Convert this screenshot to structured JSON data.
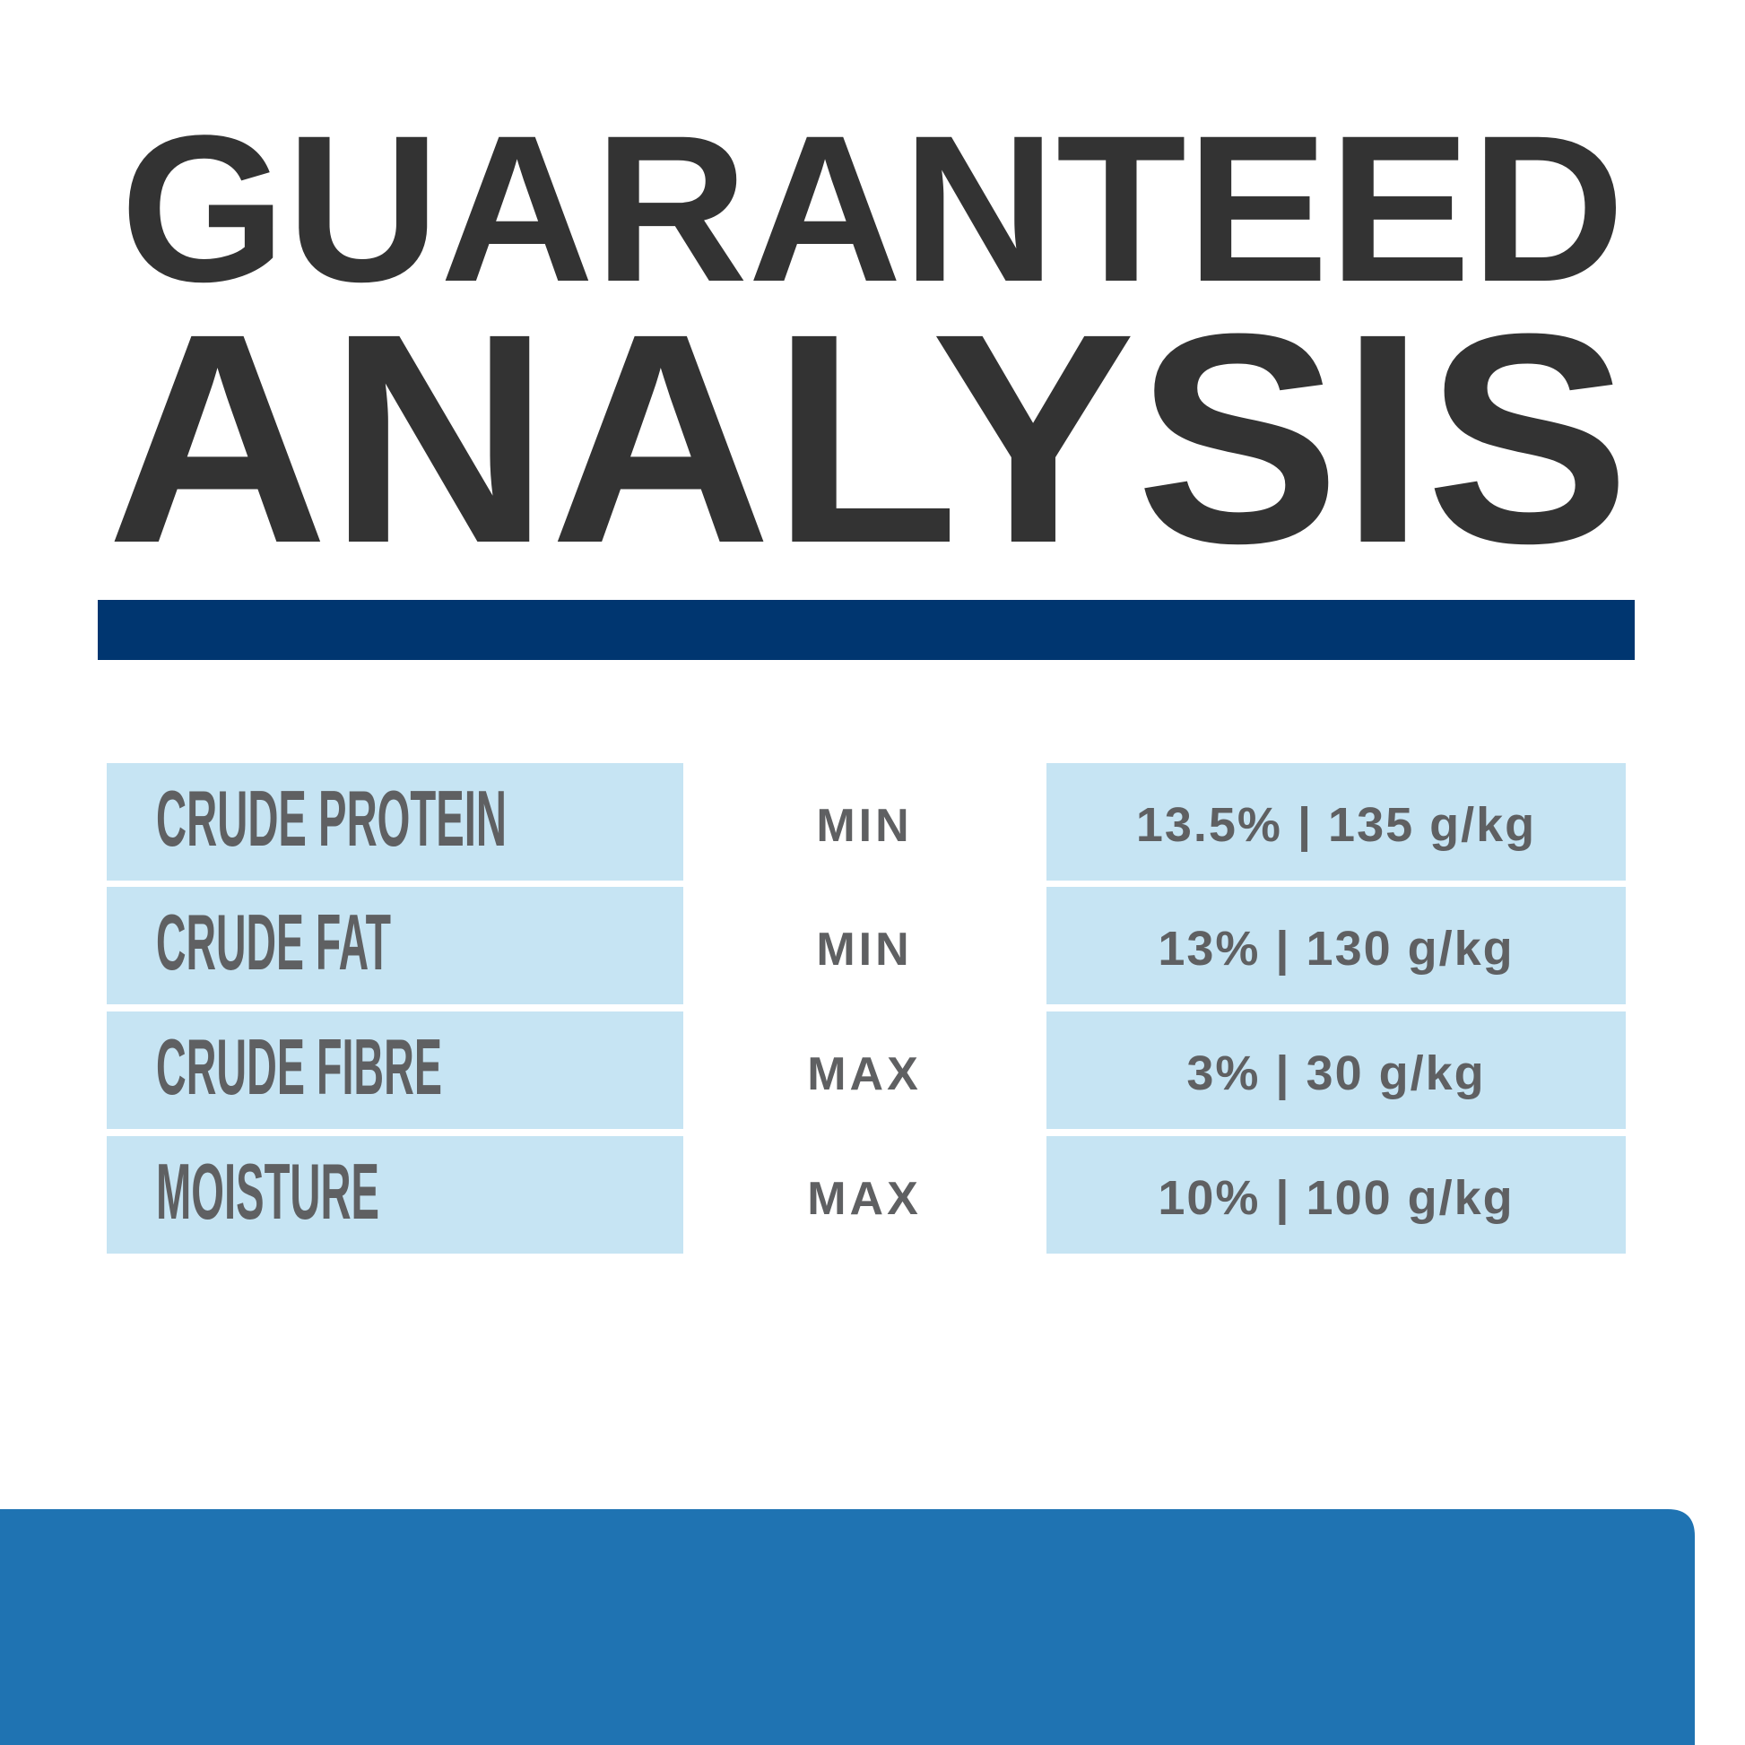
{
  "heading": {
    "line1": "GUARANTEED",
    "line2": "ANALYSIS"
  },
  "colors": {
    "heading_text": "#333333",
    "rule": "#003670",
    "cell_bg": "#c6e4f3",
    "cell_text": "#5f6062",
    "footer_panel": "#1f73b2"
  },
  "analysis": [
    {
      "nutrient": "CRUDE PROTEIN",
      "qualifier": "MIN",
      "value": "13.5% | 135 g/kg"
    },
    {
      "nutrient": "CRUDE FAT",
      "qualifier": "MIN",
      "value": "13% | 130 g/kg"
    },
    {
      "nutrient": "CRUDE FIBRE",
      "qualifier": "MAX",
      "value": "3% | 30 g/kg"
    },
    {
      "nutrient": "MOISTURE",
      "qualifier": "MAX",
      "value": "10% | 100 g/kg"
    }
  ]
}
